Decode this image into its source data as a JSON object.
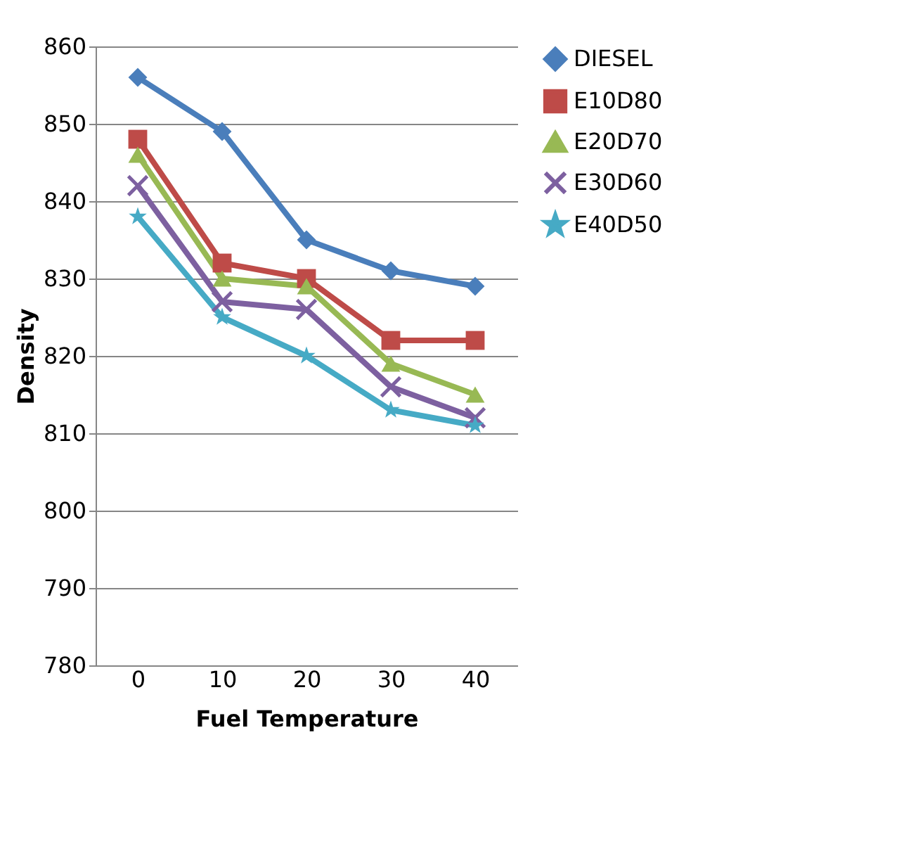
{
  "chart_data": {
    "type": "line",
    "xlabel": "Fuel Temperature",
    "ylabel": "Density",
    "categories": [
      "0",
      "10",
      "20",
      "30",
      "40"
    ],
    "series": [
      {
        "name": "DIESEL",
        "color": "#4a7ebb",
        "marker": "diamond",
        "values": [
          856,
          849,
          835,
          831,
          829
        ]
      },
      {
        "name": "E10D80",
        "color": "#be4b48",
        "marker": "square",
        "values": [
          848,
          832,
          830,
          822,
          822
        ]
      },
      {
        "name": "E20D70",
        "color": "#98b954",
        "marker": "triangle",
        "values": [
          846,
          830,
          829,
          819,
          815
        ]
      },
      {
        "name": "E30D60",
        "color": "#7d60a0",
        "marker": "cross",
        "values": [
          842,
          827,
          826,
          816,
          812
        ]
      },
      {
        "name": "E40D50",
        "color": "#46aac5",
        "marker": "star",
        "values": [
          838,
          825,
          820,
          813,
          811
        ]
      }
    ],
    "ylim": [
      780,
      860
    ],
    "yticks": [
      780,
      790,
      800,
      810,
      820,
      830,
      840,
      850,
      860
    ],
    "grid": "y",
    "legend": "right",
    "line_style": "solid"
  }
}
